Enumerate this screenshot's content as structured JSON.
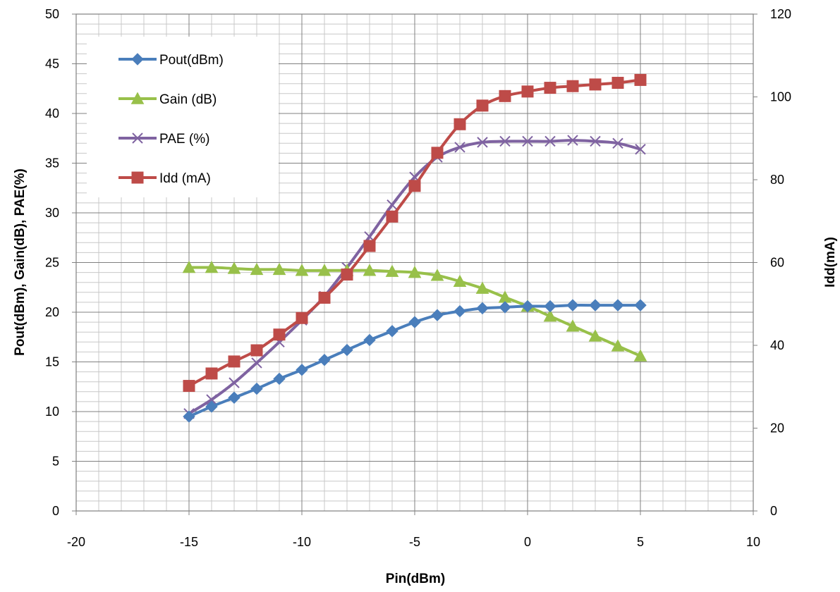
{
  "chart_data": {
    "type": "line",
    "title": "",
    "xlabel": "Pin(dBm)",
    "ylabel": "Pout(dBm), Gain(dB), PAE(%)",
    "y2label": "Idd(mA)",
    "xlim": [
      -20,
      10
    ],
    "ylim": [
      0,
      50
    ],
    "y2lim": [
      0,
      120
    ],
    "xticks": [
      "-20",
      "-15",
      "-10",
      "-5",
      "0",
      "5",
      "10"
    ],
    "yticks": [
      "0",
      "5",
      "10",
      "15",
      "20",
      "25",
      "30",
      "35",
      "40",
      "45",
      "50"
    ],
    "y2ticks": [
      "0",
      "20",
      "40",
      "60",
      "80",
      "100",
      "120"
    ],
    "grid": true,
    "legend_position": "top-left",
    "x": [
      -15,
      -14,
      -13,
      -12,
      -11,
      -10,
      -9,
      -8,
      -7,
      -6,
      -5,
      -4,
      -3,
      -2,
      -1,
      0,
      1,
      2,
      3,
      4,
      5
    ],
    "series": [
      {
        "name": "Pout(dBm)",
        "axis": "left",
        "marker": "diamond",
        "color": "#4a7ebb",
        "values": [
          9.5,
          10.5,
          11.4,
          12.3,
          13.3,
          14.2,
          15.2,
          16.2,
          17.2,
          18.1,
          19.0,
          19.7,
          20.1,
          20.4,
          20.5,
          20.6,
          20.6,
          20.7,
          20.7,
          20.7,
          20.7
        ]
      },
      {
        "name": "Gain (dB)",
        "axis": "left",
        "marker": "triangle",
        "color": "#98c04a",
        "values": [
          24.5,
          24.5,
          24.4,
          24.3,
          24.3,
          24.2,
          24.2,
          24.2,
          24.2,
          24.1,
          24.0,
          23.7,
          23.1,
          22.4,
          21.5,
          20.6,
          19.6,
          18.6,
          17.6,
          16.6,
          15.6
        ]
      },
      {
        "name": "PAE (%)",
        "axis": "left",
        "marker": "x",
        "color": "#7f63a1",
        "values": [
          9.8,
          11.2,
          12.9,
          14.9,
          17.0,
          19.2,
          21.6,
          24.5,
          27.6,
          30.8,
          33.6,
          35.6,
          36.6,
          37.1,
          37.2,
          37.2,
          37.2,
          37.3,
          37.2,
          37.0,
          36.4
        ]
      },
      {
        "name": "Idd (mA)",
        "axis": "right",
        "marker": "square",
        "color": "#be4b48",
        "values": [
          30.2,
          33.2,
          36.1,
          38.8,
          42.6,
          46.6,
          51.5,
          57.1,
          64.0,
          71.1,
          78.5,
          86.5,
          93.4,
          97.9,
          100.2,
          101.3,
          102.2,
          102.6,
          103.0,
          103.4,
          104.1
        ]
      }
    ]
  }
}
